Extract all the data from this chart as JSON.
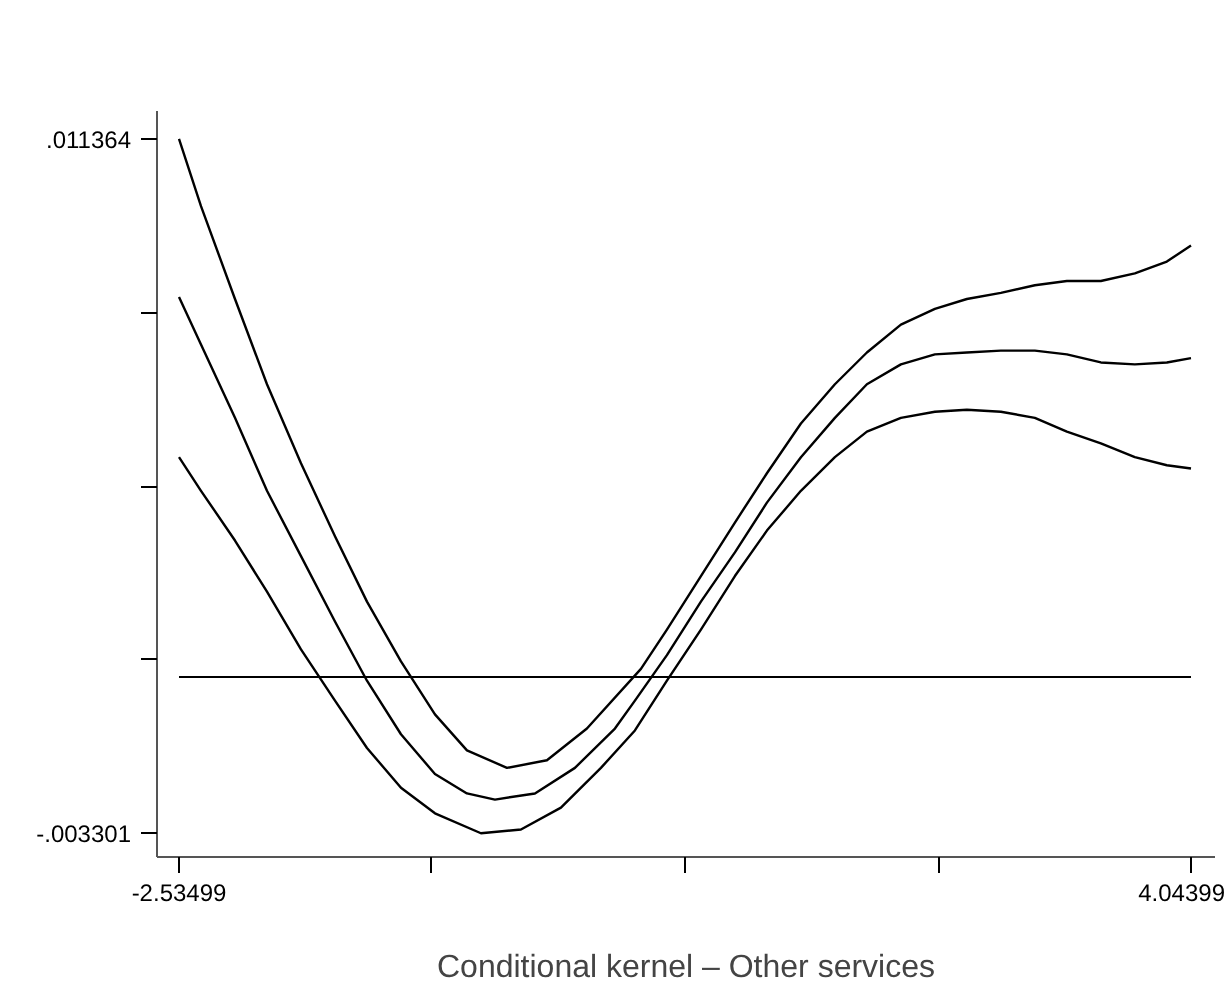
{
  "chart_data": {
    "type": "line",
    "xlabel": "Conditional kernel – Other services",
    "xlim": [
      -2.678,
      4.2
    ],
    "ylim": [
      -0.003802,
      0.011949
    ],
    "xticks": [
      -2.53499,
      {
        "value": -0.8903,
        "label": null
      },
      {
        "value": 0.7545,
        "label": null
      },
      {
        "value": 2.3993,
        "label": null
      },
      4.04399
    ],
    "yticks": [
      {
        "value": -0.003301,
        "label": "-.003301"
      },
      {
        "value": 0.000365,
        "label": null
      },
      {
        "value": 0.004031,
        "label": null
      },
      {
        "value": 0.007698,
        "label": null
      },
      {
        "value": 0.011364,
        "label": ".011364"
      }
    ],
    "grid": false,
    "marker": "none",
    "line_style": "solid",
    "ref_lines": [
      {
        "axis": "y",
        "value": 0,
        "color": "#000000"
      }
    ],
    "series": [
      {
        "color": "#000000",
        "x": [
          -2.535,
          -2.392,
          -2.171,
          -1.963,
          -1.742,
          -1.521,
          -1.313,
          -1.092,
          -0.871,
          -0.663,
          -0.403,
          -0.143,
          0.117,
          0.468,
          0.637,
          0.858,
          1.079,
          1.287,
          1.508,
          1.729,
          1.937,
          2.158,
          2.379,
          2.587,
          2.808,
          3.029,
          3.237,
          3.458,
          3.679,
          3.887,
          4.044
        ],
        "values": [
          0.01136,
          0.00994,
          0.00798,
          0.00618,
          0.00451,
          0.00297,
          0.00159,
          0.00033,
          -0.00079,
          -0.00155,
          -0.00192,
          -0.00176,
          -0.00109,
          0.00017,
          0.001,
          0.00213,
          0.00326,
          0.0043,
          0.00535,
          0.00618,
          0.00685,
          0.00744,
          0.00777,
          0.00798,
          0.00811,
          0.00827,
          0.00836,
          0.00836,
          0.00852,
          0.00877,
          0.00911
        ]
      },
      {
        "color": "#000000",
        "x": [
          -2.535,
          -2.392,
          -2.171,
          -1.963,
          -1.742,
          -1.521,
          -1.313,
          -1.092,
          -0.871,
          -0.663,
          -0.481,
          -0.221,
          0.039,
          0.299,
          0.429,
          0.637,
          0.858,
          1.079,
          1.287,
          1.508,
          1.729,
          1.937,
          2.158,
          2.379,
          2.587,
          2.808,
          3.029,
          3.237,
          3.458,
          3.679,
          3.887,
          4.044
        ],
        "values": [
          0.00802,
          0.00702,
          0.00547,
          0.00393,
          0.00255,
          0.00117,
          -8e-05,
          -0.00121,
          -0.00205,
          -0.00246,
          -0.00259,
          -0.00246,
          -0.00192,
          -0.00109,
          -0.0005,
          0.00046,
          0.00159,
          0.00263,
          0.00368,
          0.00464,
          0.00547,
          0.00618,
          0.0066,
          0.00681,
          0.00685,
          0.00689,
          0.00689,
          0.00681,
          0.00664,
          0.0066,
          0.00664,
          0.00673
        ]
      },
      {
        "color": "#000000",
        "x": [
          -2.535,
          -2.392,
          -2.171,
          -1.963,
          -1.742,
          -1.521,
          -1.313,
          -1.092,
          -0.871,
          -0.572,
          -0.312,
          -0.052,
          0.208,
          0.429,
          0.637,
          0.858,
          1.079,
          1.287,
          1.508,
          1.729,
          1.937,
          2.158,
          2.379,
          2.587,
          2.808,
          3.029,
          3.237,
          3.458,
          3.679,
          3.887,
          4.044
        ],
        "values": [
          0.00464,
          0.00393,
          0.00288,
          0.0018,
          0.00058,
          -0.0005,
          -0.0015,
          -0.00234,
          -0.00288,
          -0.003301,
          -0.00322,
          -0.00276,
          -0.00192,
          -0.00113,
          -8e-05,
          0.001,
          0.00213,
          0.00309,
          0.00393,
          0.00464,
          0.00518,
          0.00547,
          0.0056,
          0.00564,
          0.0056,
          0.00547,
          0.00518,
          0.00493,
          0.00464,
          0.00447,
          0.0044
        ]
      }
    ]
  }
}
